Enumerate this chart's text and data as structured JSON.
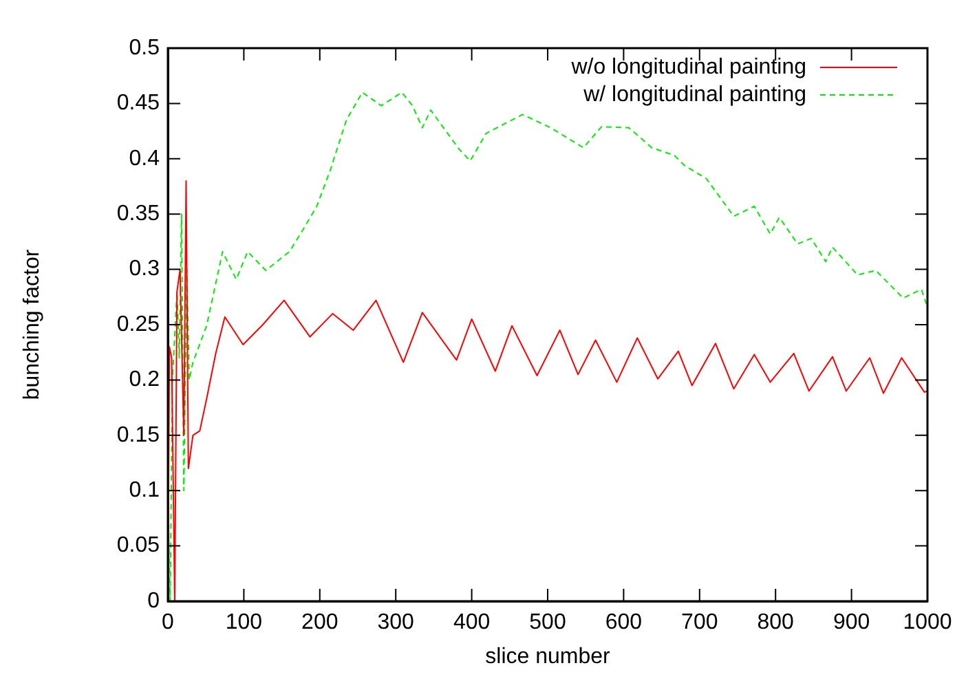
{
  "chart_data": {
    "type": "line",
    "xlabel": "slice number",
    "ylabel": "bunching factor",
    "xlim": [
      0,
      1000
    ],
    "ylim": [
      0,
      0.5
    ],
    "xticks": [
      0,
      100,
      200,
      300,
      400,
      500,
      600,
      700,
      800,
      900,
      1000
    ],
    "yticks": [
      0,
      0.05,
      0.1,
      0.15,
      0.2,
      0.25,
      0.3,
      0.35,
      0.4,
      0.45,
      0.5
    ],
    "grid": false,
    "legend": "top right",
    "marker": "none",
    "series": [
      {
        "name": "w/o longitudinal painting",
        "color": "#ff0000",
        "line_style": "solid",
        "x": [
          0,
          2,
          5,
          9,
          12,
          16,
          21,
          24,
          27,
          33,
          42,
          51,
          63,
          75,
          99,
          125,
          153,
          187,
          217,
          244,
          274,
          310,
          335,
          380,
          400,
          431,
          453,
          486,
          516,
          540,
          563,
          591,
          618,
          645,
          672,
          690,
          721,
          745,
          772,
          793,
          824,
          844,
          875,
          893,
          924,
          942,
          966,
          996,
          1000
        ],
        "values": [
          0,
          0.23,
          0.22,
          0,
          0.28,
          0.3,
          0.15,
          0.38,
          0.12,
          0.15,
          0.154,
          0.183,
          0.224,
          0.257,
          0.232,
          0.25,
          0.272,
          0.239,
          0.26,
          0.245,
          0.272,
          0.216,
          0.261,
          0.218,
          0.255,
          0.208,
          0.249,
          0.204,
          0.245,
          0.205,
          0.236,
          0.198,
          0.238,
          0.201,
          0.226,
          0.195,
          0.233,
          0.192,
          0.223,
          0.198,
          0.224,
          0.19,
          0.221,
          0.19,
          0.22,
          0.188,
          0.22,
          0.189,
          0.19
        ]
      },
      {
        "name": "w/ longitudinal painting",
        "color": "#00ee00",
        "line_style": "dashed",
        "x": [
          0,
          3,
          6,
          12,
          15,
          18,
          21,
          25,
          28,
          33,
          51,
          72,
          90,
          105,
          129,
          160,
          178,
          196,
          214,
          235,
          256,
          281,
          308,
          322,
          335,
          346,
          383,
          398,
          419,
          467,
          504,
          547,
          571,
          607,
          637,
          667,
          680,
          709,
          745,
          772,
          793,
          805,
          829,
          847,
          866,
          875,
          908,
          932,
          968,
          992,
          1000
        ],
        "values": [
          0.1,
          0,
          0.2,
          0.28,
          0.22,
          0.35,
          0.1,
          0.3,
          0.2,
          0.216,
          0.249,
          0.316,
          0.291,
          0.316,
          0.299,
          0.316,
          0.336,
          0.357,
          0.39,
          0.435,
          0.46,
          0.448,
          0.46,
          0.448,
          0.428,
          0.444,
          0.409,
          0.398,
          0.423,
          0.44,
          0.428,
          0.41,
          0.429,
          0.428,
          0.41,
          0.403,
          0.394,
          0.382,
          0.348,
          0.357,
          0.332,
          0.347,
          0.323,
          0.328,
          0.307,
          0.32,
          0.295,
          0.299,
          0.274,
          0.282,
          0.266
        ]
      }
    ]
  }
}
